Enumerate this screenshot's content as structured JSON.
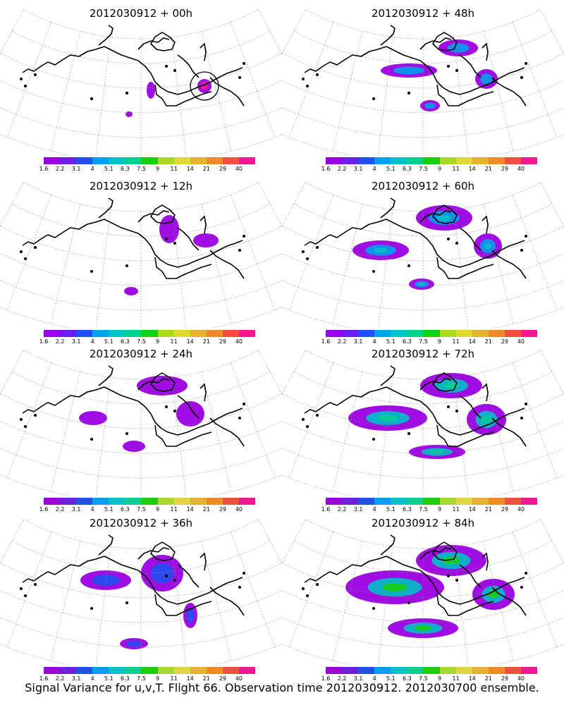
{
  "colorbar": {
    "labels": [
      "1.6",
      "2.2",
      "3.1",
      "4",
      "5.1",
      "6.3",
      "7.5",
      "9",
      "11",
      "14",
      "21",
      "29",
      "40"
    ],
    "colors": [
      "#9a00e0",
      "#6a1ee8",
      "#2050f0",
      "#00a0f0",
      "#00c0c8",
      "#00d090",
      "#18d010",
      "#a8d828",
      "#e0d838",
      "#e8b030",
      "#f08a28",
      "#f05040",
      "#f01890"
    ]
  },
  "panels": [
    {
      "title": "2012030912 + 00h",
      "intensity": 0
    },
    {
      "title": "2012030912 + 48h",
      "intensity": 4
    },
    {
      "title": "2012030912 + 12h",
      "intensity": 1
    },
    {
      "title": "2012030912 + 60h",
      "intensity": 5
    },
    {
      "title": "2012030912 + 24h",
      "intensity": 2
    },
    {
      "title": "2012030912 + 72h",
      "intensity": 6
    },
    {
      "title": "2012030912 + 36h",
      "intensity": 3
    },
    {
      "title": "2012030912 + 84h",
      "intensity": 7
    }
  ],
  "footer": "Signal Variance for u,v,T. Flight 66. Observation time 2012030912. 2012030700 ensemble."
}
